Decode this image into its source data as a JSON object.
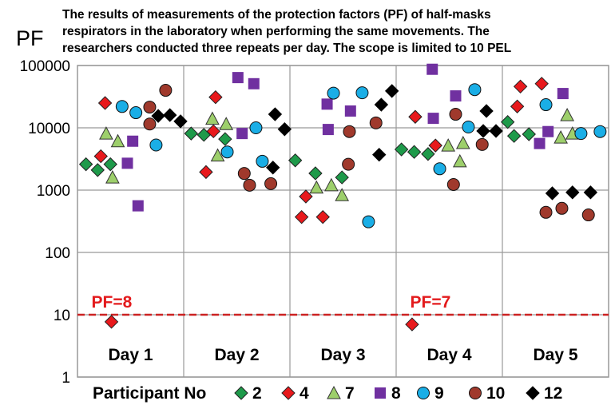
{
  "chart_data": {
    "type": "scatter",
    "title_lines": [
      "The results of measurements of the protection factors (PF) of  half-masks",
      "respirators in the laboratory when performing the same movements. The",
      "researchers conducted three repeats per day. The scope is limited to 10 PEL"
    ],
    "ylabel": "PF",
    "xlabel": "",
    "yscale": "log",
    "ylim": [
      1,
      100000
    ],
    "yticks": [
      "1",
      "10",
      "100",
      "1000",
      "10000",
      "100000"
    ],
    "xlim": [
      0.5,
      5.5
    ],
    "categories": [
      "Day 1",
      "Day 2",
      "Day 3",
      "Day 4",
      "Day 5"
    ],
    "grid": true,
    "reference_line": {
      "y": 10,
      "color": "#cc2222",
      "style": "dashed"
    },
    "annotations": [
      {
        "text": "PF=8",
        "x": 1,
        "y": 8
      },
      {
        "text": "PF=7",
        "x": 4,
        "y": 7
      }
    ],
    "legend": {
      "title": "Participant No",
      "placement": "bottom"
    },
    "series": [
      {
        "name": "2",
        "marker": "diamond",
        "color": "#1e9a4a",
        "points": [
          [
            0.58,
            2600
          ],
          [
            0.69,
            2100
          ],
          [
            0.81,
            2600
          ],
          [
            1.57,
            8100
          ],
          [
            1.69,
            7700
          ],
          [
            1.89,
            6600
          ],
          [
            2.55,
            3000
          ],
          [
            2.74,
            1860
          ],
          [
            2.99,
            1600
          ],
          [
            3.55,
            4500
          ],
          [
            3.67,
            4100
          ],
          [
            3.8,
            3800
          ],
          [
            4.55,
            12400
          ],
          [
            4.61,
            7400
          ],
          [
            4.75,
            7900
          ]
        ]
      },
      {
        "name": "4",
        "marker": "diamond",
        "color": "#e8191c",
        "points": [
          [
            0.72,
            3500
          ],
          [
            0.76,
            25000
          ],
          [
            0.82,
            7.7
          ],
          [
            1.71,
            1950
          ],
          [
            1.78,
            8800
          ],
          [
            1.8,
            31000
          ],
          [
            2.61,
            370
          ],
          [
            2.65,
            790
          ],
          [
            2.81,
            370
          ],
          [
            3.65,
            7
          ],
          [
            3.68,
            15000
          ],
          [
            3.87,
            5200
          ],
          [
            4.64,
            22000
          ],
          [
            4.67,
            46000
          ],
          [
            4.87,
            51000
          ]
        ]
      },
      {
        "name": "7",
        "marker": "triangle",
        "color": "#9dcf6b",
        "points": [
          [
            0.77,
            8100
          ],
          [
            0.83,
            1600
          ],
          [
            0.88,
            6100
          ],
          [
            1.77,
            14000
          ],
          [
            1.82,
            3600
          ],
          [
            1.9,
            11500
          ],
          [
            2.75,
            1100
          ],
          [
            2.89,
            1200
          ],
          [
            2.99,
            830
          ],
          [
            3.99,
            5200
          ],
          [
            4.1,
            2900
          ],
          [
            4.13,
            5700
          ],
          [
            5.05,
            7000
          ],
          [
            5.11,
            16000
          ],
          [
            5.16,
            8100
          ]
        ]
      },
      {
        "name": "8",
        "marker": "square",
        "color": "#7030a0",
        "points": [
          [
            0.97,
            2700
          ],
          [
            1.02,
            6100
          ],
          [
            1.07,
            560
          ],
          [
            2.01,
            64000
          ],
          [
            2.05,
            8100
          ],
          [
            2.16,
            51000
          ],
          [
            2.85,
            24000
          ],
          [
            2.86,
            9400
          ],
          [
            3.07,
            18600
          ],
          [
            3.84,
            87000
          ],
          [
            3.85,
            14200
          ],
          [
            4.06,
            32500
          ],
          [
            4.85,
            5600
          ],
          [
            4.93,
            8700
          ],
          [
            5.07,
            35500
          ]
        ]
      },
      {
        "name": "9",
        "marker": "circle",
        "color": "#1aaee6",
        "points": [
          [
            0.92,
            22000
          ],
          [
            1.05,
            17500
          ],
          [
            1.24,
            5300
          ],
          [
            1.91,
            4100
          ],
          [
            2.18,
            10000
          ],
          [
            2.24,
            2900
          ],
          [
            2.91,
            36000
          ],
          [
            3.18,
            36500
          ],
          [
            3.24,
            310
          ],
          [
            3.91,
            2200
          ],
          [
            4.18,
            10300
          ],
          [
            4.24,
            41000
          ],
          [
            4.91,
            23500
          ],
          [
            5.24,
            8100
          ],
          [
            5.42,
            8700
          ]
        ]
      },
      {
        "name": "10",
        "marker": "circle",
        "color": "#a0392c",
        "points": [
          [
            1.33,
            40000
          ],
          [
            1.18,
            21500
          ],
          [
            1.18,
            11500
          ],
          [
            2.07,
            1850
          ],
          [
            2.12,
            1200
          ],
          [
            2.32,
            1270
          ],
          [
            3.05,
            2600
          ],
          [
            3.06,
            8700
          ],
          [
            3.31,
            12000
          ],
          [
            4.04,
            1230
          ],
          [
            4.06,
            16500
          ],
          [
            4.31,
            5400
          ],
          [
            4.91,
            440
          ],
          [
            5.06,
            510
          ],
          [
            5.31,
            400
          ]
        ]
      },
      {
        "name": "12",
        "marker": "diamond",
        "color": "#000000",
        "points": [
          [
            1.26,
            15500
          ],
          [
            1.37,
            16000
          ],
          [
            1.47,
            12700
          ],
          [
            2.36,
            16500
          ],
          [
            2.45,
            9500
          ],
          [
            2.34,
            2300
          ],
          [
            3.34,
            3700
          ],
          [
            3.36,
            23500
          ],
          [
            3.46,
            39000
          ],
          [
            4.32,
            8900
          ],
          [
            4.35,
            18600
          ],
          [
            4.44,
            8900
          ],
          [
            4.97,
            890
          ],
          [
            5.16,
            920
          ],
          [
            5.33,
            920
          ]
        ]
      }
    ]
  }
}
